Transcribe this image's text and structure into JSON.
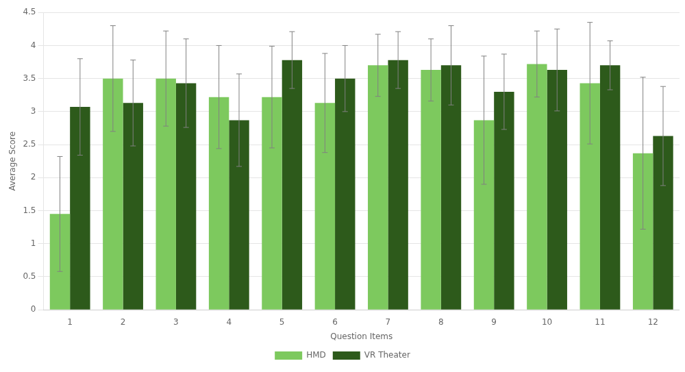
{
  "chart_data": {
    "type": "bar",
    "xlabel": "Question Items",
    "ylabel": "Average Score",
    "categories": [
      "1",
      "2",
      "3",
      "4",
      "5",
      "6",
      "7",
      "8",
      "9",
      "10",
      "11",
      "12"
    ],
    "series": [
      {
        "name": "HMD",
        "color": "#7DC95E",
        "values": [
          1.45,
          3.5,
          3.5,
          3.22,
          3.22,
          3.13,
          3.7,
          3.63,
          2.87,
          3.72,
          3.43,
          2.37
        ],
        "errors": [
          0.87,
          0.8,
          0.72,
          0.78,
          0.77,
          0.75,
          0.47,
          0.47,
          0.97,
          0.5,
          0.92,
          1.15
        ]
      },
      {
        "name": "VR Theater",
        "color": "#2D5A1B",
        "values": [
          3.07,
          3.13,
          3.43,
          2.87,
          3.78,
          3.5,
          3.78,
          3.7,
          3.3,
          3.63,
          3.7,
          2.63
        ],
        "errors": [
          0.73,
          0.65,
          0.67,
          0.7,
          0.43,
          0.5,
          0.43,
          0.6,
          0.57,
          0.62,
          0.37,
          0.75
        ]
      }
    ],
    "ylim": [
      0,
      4.5
    ],
    "yticks": [
      0,
      0.5,
      1,
      1.5,
      2,
      2.5,
      3,
      3.5,
      4,
      4.5
    ],
    "grid": true,
    "legend": "bottom"
  }
}
